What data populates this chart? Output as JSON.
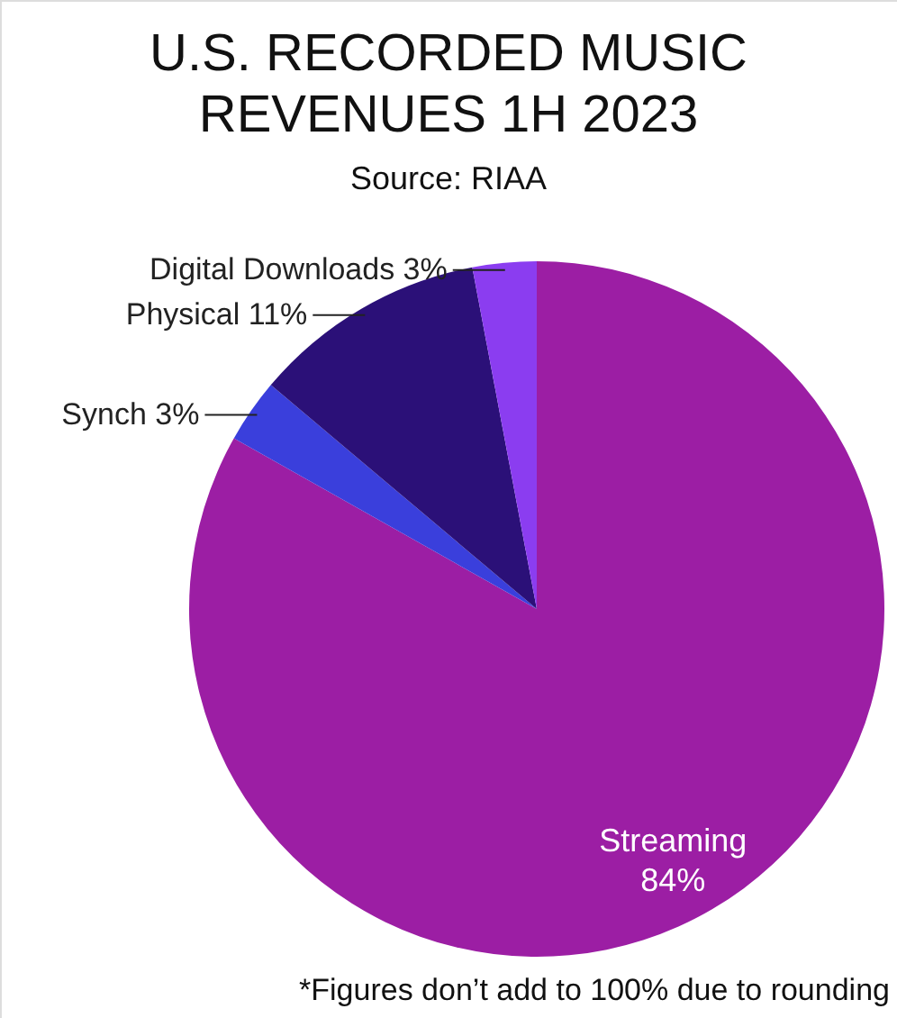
{
  "chart_data": {
    "type": "pie",
    "title": [
      "U.S. RECORDED MUSIC",
      "REVENUES 1H 2023"
    ],
    "subtitle": "Source: RIAA",
    "categories": [
      "Streaming",
      "Synch",
      "Physical",
      "Digital Downloads"
    ],
    "values": [
      84,
      3,
      11,
      3
    ],
    "value_labels": [
      "84%",
      "3%",
      "11%",
      "3%"
    ],
    "colors": [
      "#9c1ea4",
      "#3a3fdc",
      "#2b1078",
      "#8b3df0"
    ],
    "annotations": [
      "*Figures don’t add to 100% due to rounding"
    ]
  }
}
